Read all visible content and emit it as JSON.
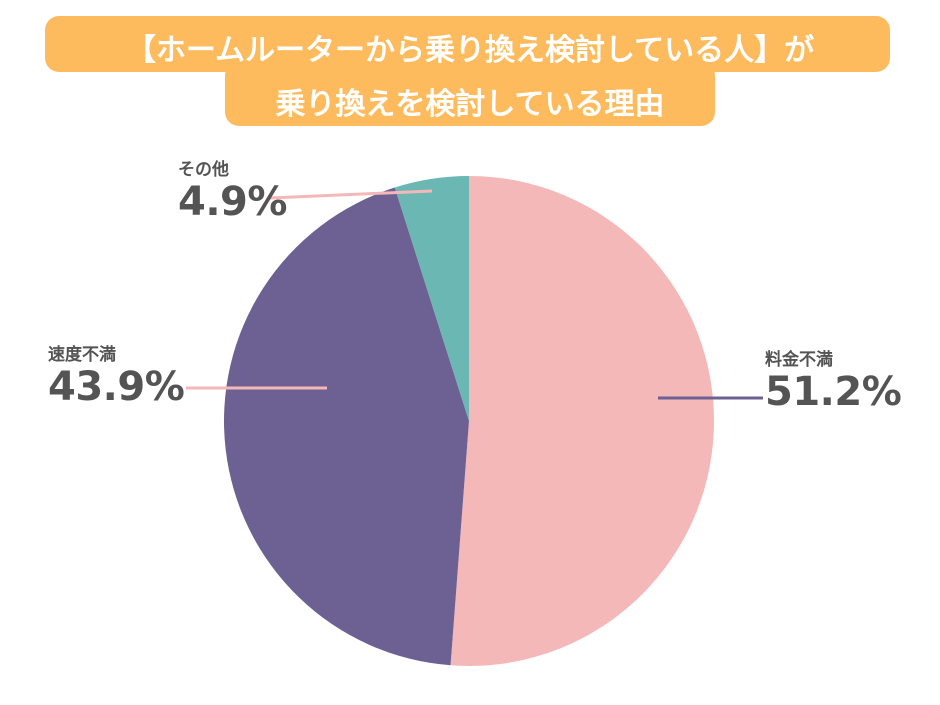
{
  "title": {
    "line1": "【ホームルーターから乗り換え検討している人】が",
    "line2": "乗り換えを検討している理由",
    "background_color": "#FDBB5D",
    "text_color": "#FFFFFF"
  },
  "chart_data": {
    "type": "pie",
    "title": "【ホームルーターから乗り換え検討している人】が乗り換えを検討している理由",
    "categories": [
      "料金不満",
      "速度不満",
      "その他"
    ],
    "values": [
      51.2,
      43.9,
      4.9
    ],
    "unit": "%",
    "colors": [
      "#F4B8B9",
      "#6D6193",
      "#6AB7B3"
    ],
    "start_angle": "12 o'clock, clockwise",
    "labels": [
      {
        "category": "料金不満",
        "value_label": "51.2%",
        "leader_line_color": "#6D6193"
      },
      {
        "category": "速度不満",
        "value_label": "43.9%",
        "leader_line_color": "#F4B8B9"
      },
      {
        "category": "その他",
        "value_label": "4.9%",
        "leader_line_color": "#F4B8B9"
      }
    ],
    "legend": "none (inline labels)",
    "grid": false
  },
  "labels": {
    "fee": {
      "category": "料金不満",
      "pct": "51.2%"
    },
    "speed": {
      "category": "速度不満",
      "pct": "43.9%"
    },
    "other": {
      "category": "その他",
      "pct": "4.9%"
    }
  }
}
